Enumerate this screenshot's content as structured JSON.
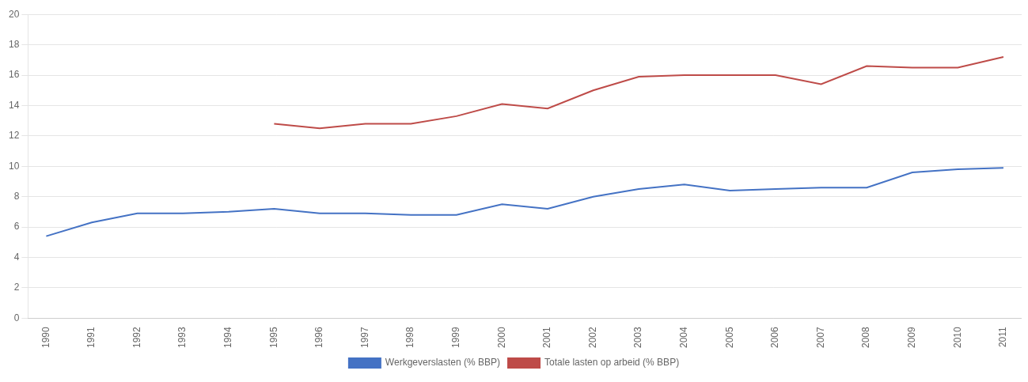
{
  "chart_data": {
    "type": "line",
    "x": [
      1990,
      1991,
      1992,
      1993,
      1994,
      1995,
      1996,
      1997,
      1998,
      1999,
      2000,
      2001,
      2002,
      2003,
      2004,
      2005,
      2006,
      2007,
      2008,
      2009,
      2010,
      2011
    ],
    "series": [
      {
        "name": "Werkgeverslasten (% BBP)",
        "color": "#4472C4",
        "values": [
          5.4,
          6.3,
          6.9,
          6.9,
          7.0,
          7.2,
          6.9,
          6.9,
          6.8,
          6.8,
          7.5,
          7.2,
          8.0,
          8.5,
          8.8,
          8.4,
          8.5,
          8.6,
          8.6,
          9.6,
          9.8,
          9.9
        ]
      },
      {
        "name": "Totale lasten op arbeid (% BBP)",
        "color": "#BE4B48",
        "values": [
          null,
          null,
          null,
          null,
          null,
          12.8,
          12.5,
          12.8,
          12.8,
          13.3,
          14.1,
          13.8,
          15.0,
          15.9,
          16.0,
          16.0,
          16.0,
          15.4,
          16.6,
          16.5,
          16.5,
          17.2
        ]
      }
    ],
    "xlim": [
      1989.6,
      2011.4
    ],
    "xticks": [
      1990,
      1991,
      1992,
      1993,
      1994,
      1995,
      1996,
      1997,
      1998,
      1999,
      2000,
      2001,
      2002,
      2003,
      2004,
      2005,
      2006,
      2007,
      2008,
      2009,
      2010,
      2011
    ],
    "ylim": [
      0,
      20
    ],
    "yticks": [
      0,
      2,
      4,
      6,
      8,
      10,
      12,
      14,
      16,
      18,
      20
    ],
    "grid": true,
    "legend": "bottom"
  }
}
